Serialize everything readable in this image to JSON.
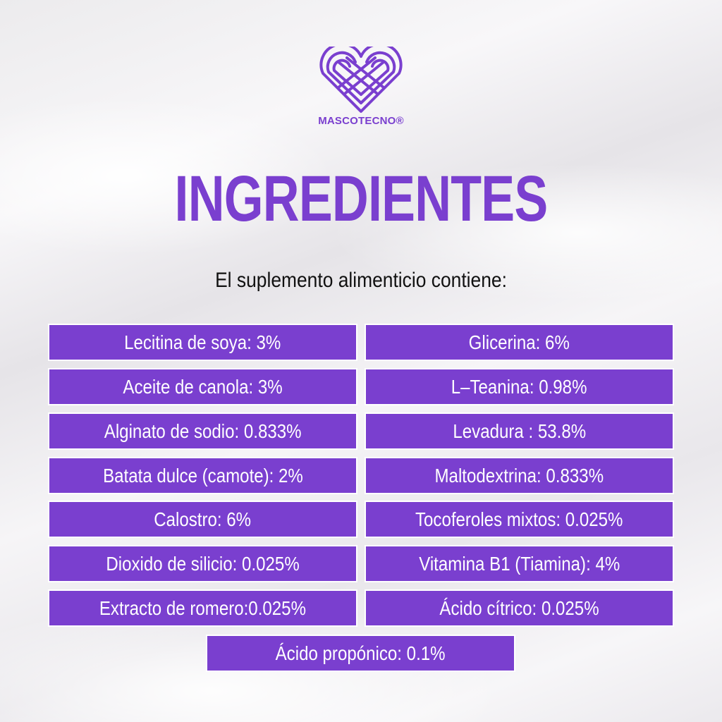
{
  "brand": {
    "name": "MASCOTECNO®",
    "logo_icon": "heart-infinity-logo-icon",
    "color": "#7a3fcf"
  },
  "heading": {
    "title": "INGREDIENTES",
    "subtitle": "El suplemento alimenticio contiene:"
  },
  "colors": {
    "accent": "#7a3fcf",
    "pill_text": "#ffffff",
    "subtitle_text": "#111111"
  },
  "ingredients": {
    "left": [
      "Lecitina de soya: 3%",
      "Aceite de canola: 3%",
      "Alginato de sodio: 0.833%",
      "Batata dulce (camote): 2%",
      "Calostro: 6%",
      "Dioxido de silicio: 0.025%",
      "Extracto de romero:0.025%"
    ],
    "right": [
      "Glicerina: 6%",
      "L–Teanina: 0.98%",
      "Levadura : 53.8%",
      "Maltodextrina: 0.833%",
      "Tocoferoles mixtos: 0.025%",
      "Vitamina B1 (Tiamina): 4%",
      "Ácido cítrico: 0.025%"
    ],
    "last": "Ácido propónico: 0.1%"
  }
}
